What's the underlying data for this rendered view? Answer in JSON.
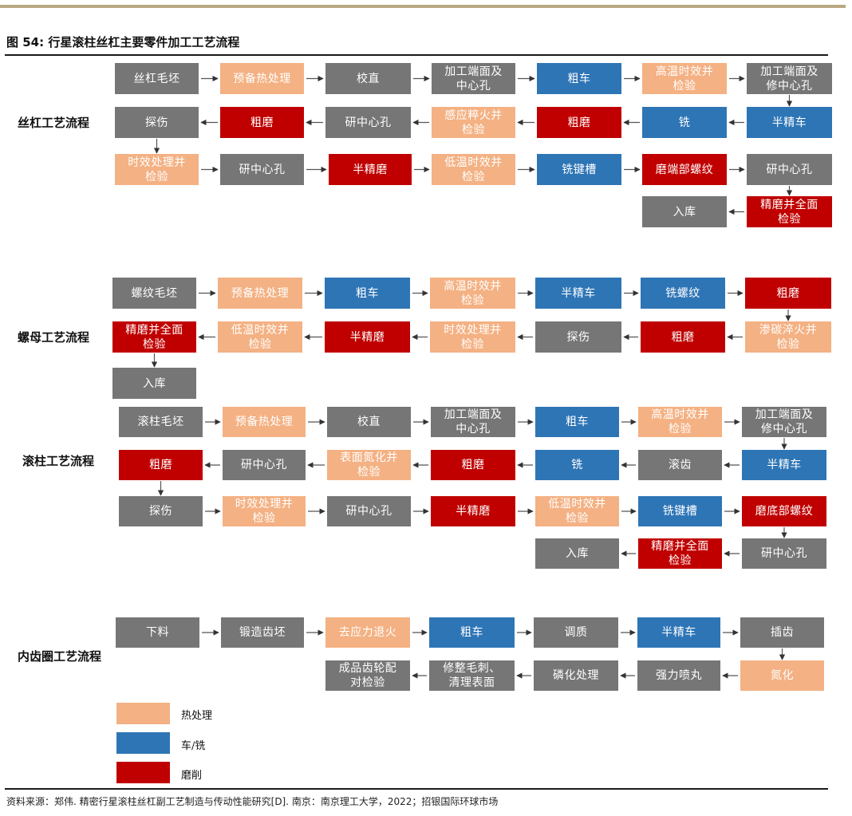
{
  "figure": {
    "title": "图 54: 行星滚柱丝杠主要零件加工工艺流程"
  },
  "sections": {
    "screw": {
      "label": "丝杠工艺流程",
      "steps": [
        "丝杠毛坯",
        "预备热处理",
        "校直",
        "加工端面及\n中心孔",
        "粗车",
        "高温时效并\n检验",
        "加工端面及\n修中心孔",
        "半精车",
        "铣",
        "粗磨",
        "感应粹火并\n检验",
        "研中心孔",
        "粗磨",
        "探伤",
        "时效处理并\n检验",
        "研中心孔",
        "半精磨",
        "低温时效并\n检验",
        "铣键槽",
        "磨端部螺纹",
        "研中心孔",
        "精磨并全面\n检验",
        "入库"
      ]
    },
    "nut": {
      "label": "螺母工艺流程",
      "steps": [
        "螺纹毛坯",
        "预备热处理",
        "粗车",
        "高温时效并\n检验",
        "半精车",
        "铣螺纹",
        "粗磨",
        "渗碳淬火并\n检验",
        "粗磨",
        "探伤",
        "时效处理并\n检验",
        "半精磨",
        "低温时效并\n检验",
        "精磨并全面\n检验",
        "入库"
      ]
    },
    "roller": {
      "label": "滚柱工艺流程",
      "steps": [
        "滚柱毛坯",
        "预备热处理",
        "校直",
        "加工端面及\n中心孔",
        "粗车",
        "高温时效并\n检验",
        "加工端面及\n修中心孔",
        "半精车",
        "滚齿",
        "铣",
        "粗磨",
        "表面氮化并\n检验",
        "研中心孔",
        "粗磨",
        "探伤",
        "时效处理并\n检验",
        "研中心孔",
        "半精磨",
        "低温时效并\n检验",
        "铣键槽",
        "磨底部螺纹",
        "研中心孔",
        "精磨并全面\n检验",
        "入库"
      ]
    },
    "ring": {
      "label": "内齿圈工艺流程",
      "steps": [
        "下料",
        "锻造齿坯",
        "去应力退火",
        "粗车",
        "调质",
        "半精车",
        "插齿",
        "氮化",
        "强力喷丸",
        "磷化处理",
        "修整毛刺、\n清理表面",
        "成品齿轮配\n对检验"
      ]
    }
  },
  "legend": [
    {
      "label": "热处理",
      "color": "#f4b183"
    },
    {
      "label": "车/铣",
      "color": "#2e75b6"
    },
    {
      "label": "磨削",
      "color": "#c00000"
    }
  ],
  "colors": {
    "heat": "#f4b183",
    "turn": "#2e75b6",
    "grind": "#c00000",
    "other": "#767676"
  },
  "source": "资料来源：郑伟. 精密行星滚柱丝杠副工艺制造与传动性能研究[D]. 南京：南京理工大学，2022；招银国际环球市场"
}
